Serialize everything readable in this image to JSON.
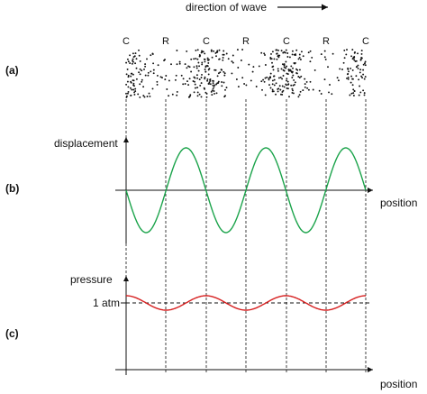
{
  "header": {
    "direction_label": "direction of wave"
  },
  "markers": [
    "C",
    "R",
    "C",
    "R",
    "C",
    "R",
    "C"
  ],
  "panels": {
    "a": {
      "label": "(a)"
    },
    "b": {
      "label": "(b)",
      "y_label": "displacement",
      "x_label": "position"
    },
    "c": {
      "label": "(c)",
      "y_label": "pressure",
      "x_label": "position",
      "reference_label": "1 atm"
    }
  },
  "colors": {
    "displacement_curve": "#1aa34a",
    "pressure_curve": "#d62020",
    "ink": "#111111"
  }
}
